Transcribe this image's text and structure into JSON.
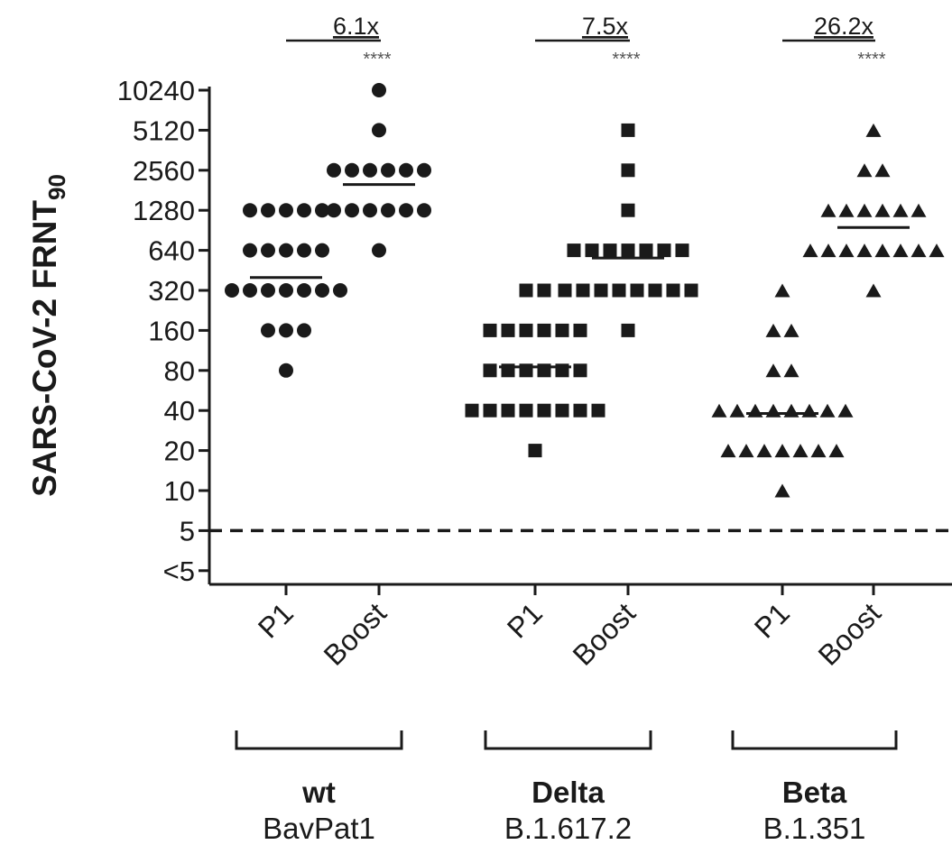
{
  "chart_data": {
    "type": "scatter",
    "y_scale": "log2",
    "y_axis_label": "SARS-CoV-2 FRNT",
    "y_axis_label_subscript": "90",
    "y_ticks": [
      "10240",
      "5120",
      "2560",
      "1280",
      "640",
      "320",
      "160",
      "80",
      "40",
      "20",
      "10",
      "5",
      "<5"
    ],
    "y_tick_values": [
      10240,
      5120,
      2560,
      1280,
      640,
      320,
      160,
      80,
      40,
      20,
      10,
      5,
      2.5
    ],
    "threshold_line": 5,
    "groups": [
      {
        "name": "wt",
        "subtitle": "BavPat1",
        "marker": "circle",
        "fold_change": "6.1x",
        "significance": "****",
        "series": [
          {
            "name": "P1",
            "median": 400,
            "points": [
              {
                "value": 1280,
                "count": 5
              },
              {
                "value": 640,
                "count": 5
              },
              {
                "value": 320,
                "count": 7
              },
              {
                "value": 160,
                "count": 3
              },
              {
                "value": 80,
                "count": 1
              }
            ]
          },
          {
            "name": "Boost",
            "median": 2000,
            "points": [
              {
                "value": 10240,
                "count": 1
              },
              {
                "value": 5120,
                "count": 1
              },
              {
                "value": 2560,
                "count": 6
              },
              {
                "value": 1280,
                "count": 6
              },
              {
                "value": 640,
                "count": 1
              }
            ]
          }
        ]
      },
      {
        "name": "Delta",
        "subtitle": "B.1.617.2",
        "marker": "square",
        "fold_change": "7.5x",
        "significance": "****",
        "series": [
          {
            "name": "P1",
            "median": 85,
            "points": [
              {
                "value": 320,
                "count": 2
              },
              {
                "value": 160,
                "count": 6
              },
              {
                "value": 80,
                "count": 6
              },
              {
                "value": 40,
                "count": 8
              },
              {
                "value": 20,
                "count": 1
              }
            ]
          },
          {
            "name": "Boost",
            "median": 560,
            "points": [
              {
                "value": 5120,
                "count": 1
              },
              {
                "value": 2560,
                "count": 1
              },
              {
                "value": 1280,
                "count": 1
              },
              {
                "value": 640,
                "count": 7
              },
              {
                "value": 320,
                "count": 8
              },
              {
                "value": 160,
                "count": 1
              }
            ]
          }
        ]
      },
      {
        "name": "Beta",
        "subtitle": "B.1.351",
        "marker": "triangle",
        "fold_change": "26.2x",
        "significance": "****",
        "series": [
          {
            "name": "P1",
            "median": 38,
            "points": [
              {
                "value": 320,
                "count": 1
              },
              {
                "value": 160,
                "count": 2
              },
              {
                "value": 80,
                "count": 2
              },
              {
                "value": 40,
                "count": 8
              },
              {
                "value": 20,
                "count": 7
              },
              {
                "value": 10,
                "count": 1
              }
            ]
          },
          {
            "name": "Boost",
            "median": 950,
            "points": [
              {
                "value": 5120,
                "count": 1
              },
              {
                "value": 2560,
                "count": 2
              },
              {
                "value": 1280,
                "count": 6
              },
              {
                "value": 640,
                "count": 8
              },
              {
                "value": 320,
                "count": 1
              }
            ]
          }
        ]
      }
    ]
  }
}
